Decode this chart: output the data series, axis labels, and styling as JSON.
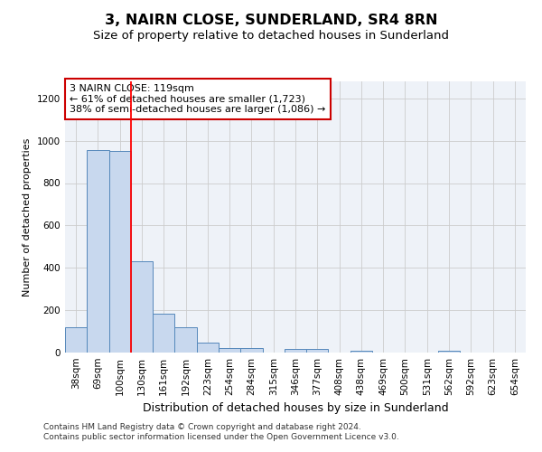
{
  "title": "3, NAIRN CLOSE, SUNDERLAND, SR4 8RN",
  "subtitle": "Size of property relative to detached houses in Sunderland",
  "xlabel": "Distribution of detached houses by size in Sunderland",
  "ylabel": "Number of detached properties",
  "categories": [
    "38sqm",
    "69sqm",
    "100sqm",
    "130sqm",
    "161sqm",
    "192sqm",
    "223sqm",
    "254sqm",
    "284sqm",
    "315sqm",
    "346sqm",
    "377sqm",
    "408sqm",
    "438sqm",
    "469sqm",
    "500sqm",
    "531sqm",
    "562sqm",
    "592sqm",
    "623sqm",
    "654sqm"
  ],
  "values": [
    120,
    955,
    950,
    430,
    185,
    120,
    45,
    20,
    20,
    0,
    15,
    15,
    0,
    10,
    0,
    0,
    0,
    10,
    0,
    0,
    0
  ],
  "bar_color": "#c8d8ee",
  "bar_edge_color": "#5588bb",
  "grid_color": "#cccccc",
  "background_color": "#eef2f8",
  "red_line_x": 2.5,
  "annotation_text": "3 NAIRN CLOSE: 119sqm\n← 61% of detached houses are smaller (1,723)\n38% of semi-detached houses are larger (1,086) →",
  "annotation_box_color": "#ffffff",
  "annotation_border_color": "#cc0000",
  "footer_line1": "Contains HM Land Registry data © Crown copyright and database right 2024.",
  "footer_line2": "Contains public sector information licensed under the Open Government Licence v3.0.",
  "ylim": [
    0,
    1280
  ],
  "yticks": [
    0,
    200,
    400,
    600,
    800,
    1000,
    1200
  ],
  "title_fontsize": 11.5,
  "subtitle_fontsize": 9.5,
  "xlabel_fontsize": 9,
  "ylabel_fontsize": 8,
  "tick_fontsize": 7.5,
  "annotation_fontsize": 8,
  "footer_fontsize": 6.5
}
